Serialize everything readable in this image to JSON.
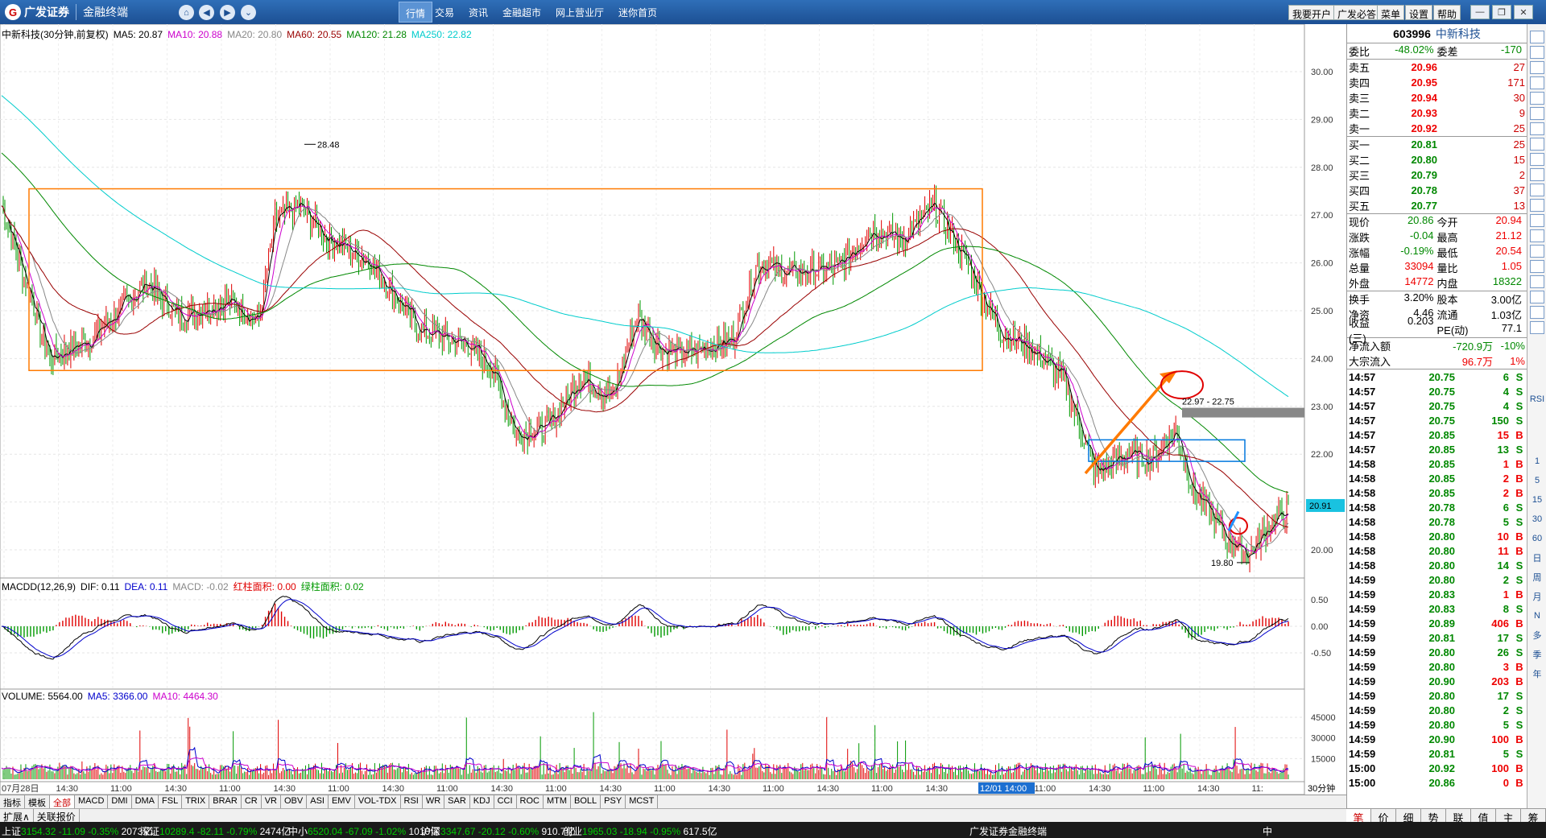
{
  "app": {
    "logo": "广发证券",
    "subtitle": "金融终端",
    "menus": [
      "行情",
      "交易",
      "资讯",
      "金融超市",
      "网上营业厅",
      "迷你首页"
    ],
    "right_buttons": [
      "我要开户",
      "广发必答",
      "菜单",
      "设置",
      "帮助"
    ]
  },
  "chart": {
    "title": "中新科技(30分钟,前复权)",
    "ma": [
      {
        "label": "MA5: 20.87",
        "color": "#000000"
      },
      {
        "label": "MA10: 20.88",
        "color": "#cc00cc"
      },
      {
        "label": "MA20: 20.80",
        "color": "#888888"
      },
      {
        "label": "MA60: 20.55",
        "color": "#990000"
      },
      {
        "label": "MA120: 21.28",
        "color": "#008800"
      },
      {
        "label": "MA250: 22.82",
        "color": "#00cccc"
      }
    ],
    "high_label": "28.48",
    "low_label": "19.80",
    "range_label": "22.97 - 22.75",
    "last_price": "20.91",
    "macd_title": "MACDD(12,26,9)",
    "macd_items": [
      {
        "label": "DIF: 0.11",
        "color": "#000000"
      },
      {
        "label": "DEA: 0.11",
        "color": "#0000cc"
      },
      {
        "label": "MACD: -0.02",
        "color": "#888888"
      },
      {
        "label": "红柱面积: 0.00",
        "color": "#e00000"
      },
      {
        "label": "绿柱面积: 0.02",
        "color": "#009900"
      }
    ],
    "vol_title": "VOLUME: 5564.00",
    "vol_items": [
      {
        "label": "MA5: 3366.00",
        "color": "#0000cc"
      },
      {
        "label": "MA10: 4464.30",
        "color": "#cc00cc"
      }
    ],
    "price_ticks": [
      "30.00",
      "29.00",
      "28.00",
      "27.00",
      "26.00",
      "25.00",
      "24.00",
      "23.00",
      "22.00",
      "21.00",
      "20.00"
    ],
    "macd_ticks": [
      "0.50",
      "0.00",
      "-0.50"
    ],
    "vol_ticks": [
      "45000",
      "30000",
      "15000"
    ],
    "time_labels": [
      "07月28日",
      "14:30",
      "11:00",
      "14:30",
      "11:00",
      "14:30",
      "11:00",
      "14:30",
      "11:00",
      "14:30",
      "11:00",
      "14:30",
      "11:00",
      "14:30",
      "11:00",
      "14:30",
      "11:00",
      "14:30",
      "12/01 14:00",
      "11:00",
      "14:30",
      "11:00",
      "14:30",
      "11:"
    ],
    "period": "30分钟"
  },
  "tabs": [
    "指标",
    "模板",
    "全部",
    "MACD",
    "DMI",
    "DMA",
    "FSL",
    "TRIX",
    "BRAR",
    "CR",
    "VR",
    "OBV",
    "ASI",
    "EMV",
    "VOL-TDX",
    "RSI",
    "WR",
    "SAR",
    "KDJ",
    "CCI",
    "ROC",
    "MTM",
    "BOLL",
    "PSY",
    "MCST"
  ],
  "tabs2": [
    "扩展∧",
    "关联报价"
  ],
  "right_tabs": [
    "笔",
    "价",
    "细",
    "势",
    "联",
    "值",
    "主",
    "筹"
  ],
  "stock": {
    "code": "603996",
    "name": "中新科技",
    "webi": {
      "l1": "委比",
      "v1": "-48.02%",
      "l2": "委差",
      "v2": "-170"
    },
    "asks": [
      {
        "l": "卖五",
        "p": "20.96",
        "v": "27"
      },
      {
        "l": "卖四",
        "p": "20.95",
        "v": "171"
      },
      {
        "l": "卖三",
        "p": "20.94",
        "v": "30"
      },
      {
        "l": "卖二",
        "p": "20.93",
        "v": "9"
      },
      {
        "l": "卖一",
        "p": "20.92",
        "v": "25"
      }
    ],
    "bids": [
      {
        "l": "买一",
        "p": "20.81",
        "v": "25"
      },
      {
        "l": "买二",
        "p": "20.80",
        "v": "15"
      },
      {
        "l": "买三",
        "p": "20.79",
        "v": "2"
      },
      {
        "l": "买四",
        "p": "20.78",
        "v": "37"
      },
      {
        "l": "买五",
        "p": "20.77",
        "v": "13"
      }
    ],
    "quote": [
      [
        "现价",
        "20.86",
        "今开",
        "20.94"
      ],
      [
        "涨跌",
        "-0.04",
        "最高",
        "21.12"
      ],
      [
        "涨幅",
        "-0.19%",
        "最低",
        "20.54"
      ],
      [
        "总量",
        "33094",
        "量比",
        "1.05"
      ],
      [
        "外盘",
        "14772",
        "内盘",
        "18322"
      ]
    ],
    "quote2": [
      [
        "换手",
        "3.20%",
        "股本",
        "3.00亿"
      ],
      [
        "净资",
        "4.46",
        "流通",
        "1.03亿"
      ],
      [
        "收益(三)",
        "0.203",
        "PE(动)",
        "77.1"
      ]
    ],
    "flow": [
      [
        "净流入额",
        "-720.9万",
        "-10%"
      ],
      [
        "大宗流入",
        "96.7万",
        "1%"
      ]
    ],
    "ticks": [
      [
        "14:57",
        "20.75",
        "6",
        "S"
      ],
      [
        "14:57",
        "20.75",
        "4",
        "S"
      ],
      [
        "14:57",
        "20.75",
        "4",
        "S"
      ],
      [
        "14:57",
        "20.75",
        "150",
        "S"
      ],
      [
        "14:57",
        "20.85",
        "15",
        "B"
      ],
      [
        "14:57",
        "20.85",
        "13",
        "S"
      ],
      [
        "14:58",
        "20.85",
        "1",
        "B"
      ],
      [
        "14:58",
        "20.85",
        "2",
        "B"
      ],
      [
        "14:58",
        "20.85",
        "2",
        "B"
      ],
      [
        "14:58",
        "20.78",
        "6",
        "S"
      ],
      [
        "14:58",
        "20.78",
        "5",
        "S"
      ],
      [
        "14:58",
        "20.80",
        "10",
        "B"
      ],
      [
        "14:58",
        "20.80",
        "11",
        "B"
      ],
      [
        "14:58",
        "20.80",
        "14",
        "S"
      ],
      [
        "14:59",
        "20.80",
        "2",
        "S"
      ],
      [
        "14:59",
        "20.83",
        "1",
        "B"
      ],
      [
        "14:59",
        "20.83",
        "8",
        "S"
      ],
      [
        "14:59",
        "20.89",
        "406",
        "B"
      ],
      [
        "14:59",
        "20.81",
        "17",
        "S"
      ],
      [
        "14:59",
        "20.80",
        "26",
        "S"
      ],
      [
        "14:59",
        "20.80",
        "3",
        "B"
      ],
      [
        "14:59",
        "20.90",
        "203",
        "B"
      ],
      [
        "14:59",
        "20.80",
        "17",
        "S"
      ],
      [
        "14:59",
        "20.80",
        "2",
        "S"
      ],
      [
        "14:59",
        "20.80",
        "5",
        "S"
      ],
      [
        "14:59",
        "20.90",
        "100",
        "B"
      ],
      [
        "14:59",
        "20.81",
        "5",
        "S"
      ],
      [
        "15:00",
        "20.92",
        "100",
        "B"
      ],
      [
        "15:00",
        "20.86",
        "0",
        "B"
      ]
    ]
  },
  "tool_labels": [
    "1",
    "5",
    "15",
    "30",
    "60",
    "日",
    "周",
    "月",
    "N",
    "多",
    "季",
    "年"
  ],
  "tool_icons": [
    "RSI"
  ],
  "status": [
    {
      "name": "上证",
      "v": "3154.32",
      "c": "-11.09",
      "p": "-0.35%",
      "a": "2073亿"
    },
    {
      "name": "深证",
      "v": "10289.4",
      "c": "-82.11",
      "p": "-0.79%",
      "a": "2474亿"
    },
    {
      "name": "中小",
      "v": "6520.04",
      "c": "-67.09",
      "p": "-1.02%",
      "a": "1010亿"
    },
    {
      "name": "沪深",
      "v": "3347.67",
      "c": "-20.12",
      "p": "-0.60%",
      "a": "910.7亿"
    },
    {
      "name": "创业",
      "v": "1965.03",
      "c": "-18.94",
      "p": "-0.95%",
      "a": "617.5亿"
    }
  ],
  "status_brand": "广发证券金融终端",
  "ime": "中"
}
